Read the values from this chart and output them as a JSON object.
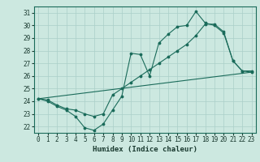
{
  "xlabel": "Humidex (Indice chaleur)",
  "bg_color": "#cce8e0",
  "grid_color": "#aacfc8",
  "line_color": "#1a6b5a",
  "xlim": [
    -0.5,
    23.5
  ],
  "ylim": [
    21.5,
    31.5
  ],
  "yticks": [
    22,
    23,
    24,
    25,
    26,
    27,
    28,
    29,
    30,
    31
  ],
  "xticks": [
    0,
    1,
    2,
    3,
    4,
    5,
    6,
    7,
    8,
    9,
    10,
    11,
    12,
    13,
    14,
    15,
    16,
    17,
    18,
    19,
    20,
    21,
    22,
    23
  ],
  "series1_x": [
    0,
    1,
    2,
    3,
    4,
    5,
    6,
    7,
    8,
    9,
    10,
    11,
    12,
    13,
    14,
    15,
    16,
    17,
    18,
    19,
    20,
    21,
    22,
    23
  ],
  "series1_y": [
    24.2,
    24.0,
    23.6,
    23.3,
    22.8,
    21.9,
    21.7,
    22.2,
    23.3,
    24.4,
    27.8,
    27.7,
    26.0,
    28.6,
    29.3,
    29.9,
    30.0,
    31.1,
    30.2,
    30.0,
    29.4,
    27.2,
    26.4,
    26.3
  ],
  "series2_x": [
    0,
    23
  ],
  "series2_y": [
    24.2,
    26.3
  ],
  "series3_x": [
    0,
    1,
    2,
    3,
    4,
    5,
    6,
    7,
    8,
    9,
    10,
    11,
    12,
    13,
    14,
    15,
    16,
    17,
    18,
    19,
    20,
    21,
    22,
    23
  ],
  "series3_y": [
    24.2,
    24.1,
    23.7,
    23.4,
    23.3,
    23.0,
    22.8,
    23.0,
    24.5,
    25.0,
    25.5,
    26.0,
    26.5,
    27.0,
    27.5,
    28.0,
    28.5,
    29.2,
    30.1,
    30.1,
    29.5,
    27.2,
    26.4,
    26.4
  ],
  "tick_fontsize": 5.5,
  "xlabel_fontsize": 6.5
}
